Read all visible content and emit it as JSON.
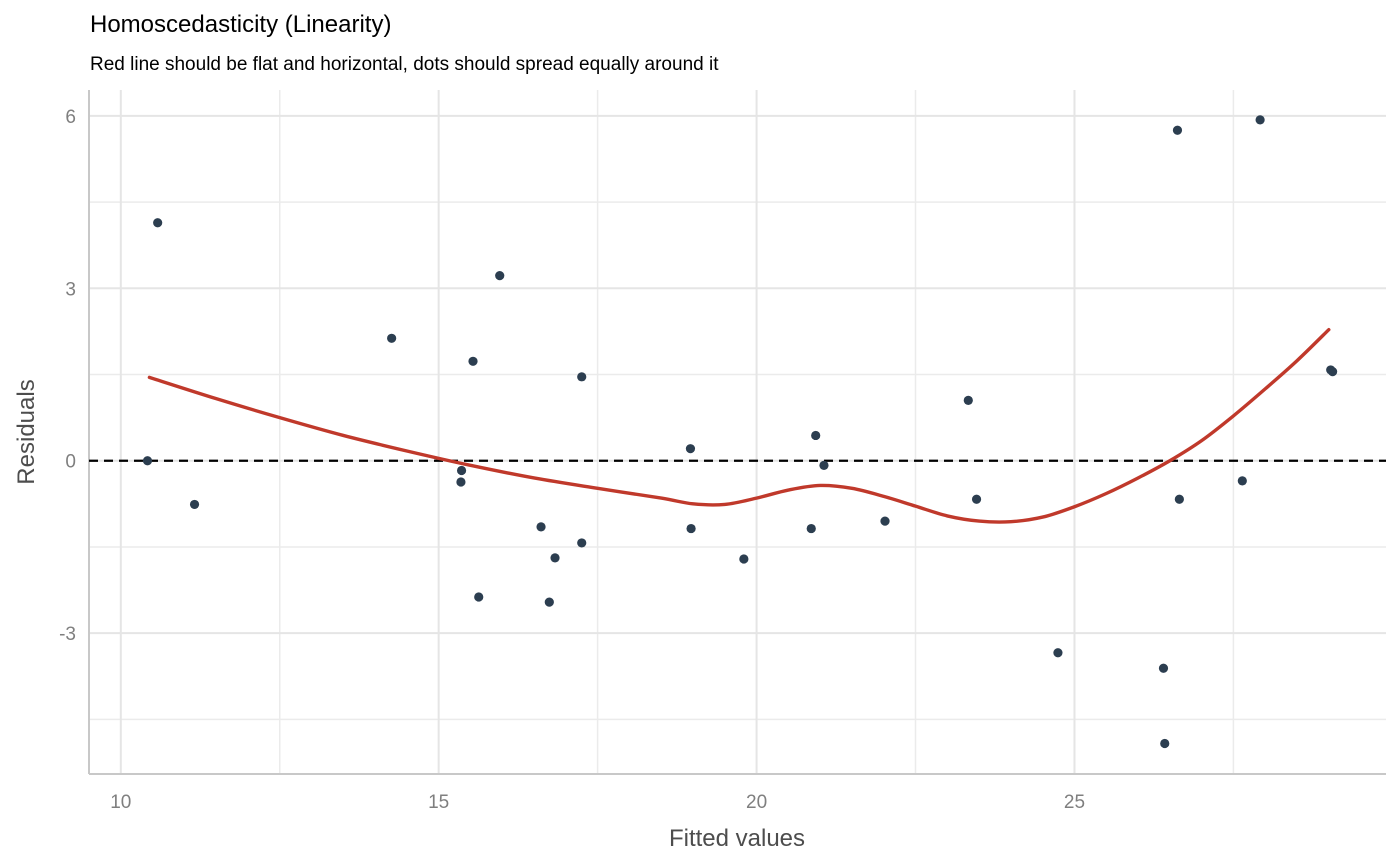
{
  "chart_data": {
    "type": "scatter",
    "title": "Homoscedasticity (Linearity)",
    "subtitle": "Red line should be flat and horizontal, dots should spread equally around it",
    "xlabel": "Fitted values",
    "ylabel": "Residuals",
    "xlim": [
      9.5,
      29.9
    ],
    "ylim": [
      -5.45,
      6.45
    ],
    "x_ticks": [
      10,
      15,
      20,
      25
    ],
    "x_tick_labels": [
      "10",
      "15",
      "20",
      "25"
    ],
    "y_ticks": [
      -3,
      0,
      3,
      6
    ],
    "y_tick_labels": [
      "-3",
      "0",
      "3",
      "6"
    ],
    "x_minor_ticks": [
      12.5,
      17.5,
      22.5,
      27.5
    ],
    "y_minor_ticks": [
      -4.5,
      -1.5,
      1.5,
      4.5
    ],
    "grid": true,
    "reference_line": {
      "y": 0,
      "style": "dashed",
      "color": "#000000"
    },
    "points": {
      "color": "#2c3e50",
      "x": [
        10.42,
        10.58,
        11.16,
        14.26,
        15.36,
        15.35,
        15.54,
        15.63,
        15.96,
        16.61,
        16.83,
        16.74,
        17.25,
        17.25,
        18.96,
        18.97,
        19.8,
        20.86,
        20.93,
        21.06,
        22.02,
        23.33,
        23.46,
        24.74,
        26.4,
        26.42,
        26.62,
        26.65,
        27.64,
        27.92,
        29.03,
        29.06
      ],
      "y": [
        0.0,
        4.14,
        -0.76,
        2.13,
        -0.17,
        -0.37,
        1.73,
        -2.37,
        3.22,
        -1.15,
        -1.69,
        -2.46,
        1.46,
        -1.43,
        0.21,
        -1.18,
        -1.71,
        -1.18,
        0.44,
        -0.08,
        -1.05,
        1.05,
        -0.67,
        -3.34,
        -3.61,
        -4.92,
        5.75,
        -0.67,
        -0.35,
        5.93,
        1.58,
        1.55
      ]
    },
    "smooth": {
      "color": "#c0392b",
      "x": [
        10.45,
        11.5,
        12.5,
        13.5,
        14.5,
        15.5,
        16.5,
        17.5,
        18.5,
        19.0,
        19.5,
        20.0,
        20.5,
        21.0,
        21.5,
        22.0,
        22.5,
        23.0,
        23.5,
        24.0,
        24.5,
        25.0,
        25.5,
        26.0,
        26.5,
        27.0,
        27.5,
        28.0,
        28.5,
        29.0
      ],
      "y": [
        1.45,
        1.08,
        0.75,
        0.44,
        0.17,
        -0.08,
        -0.3,
        -0.48,
        -0.65,
        -0.75,
        -0.76,
        -0.65,
        -0.51,
        -0.43,
        -0.48,
        -0.62,
        -0.79,
        -0.96,
        -1.05,
        -1.06,
        -0.98,
        -0.8,
        -0.57,
        -0.3,
        0.0,
        0.35,
        0.78,
        1.25,
        1.74,
        2.28
      ]
    }
  }
}
